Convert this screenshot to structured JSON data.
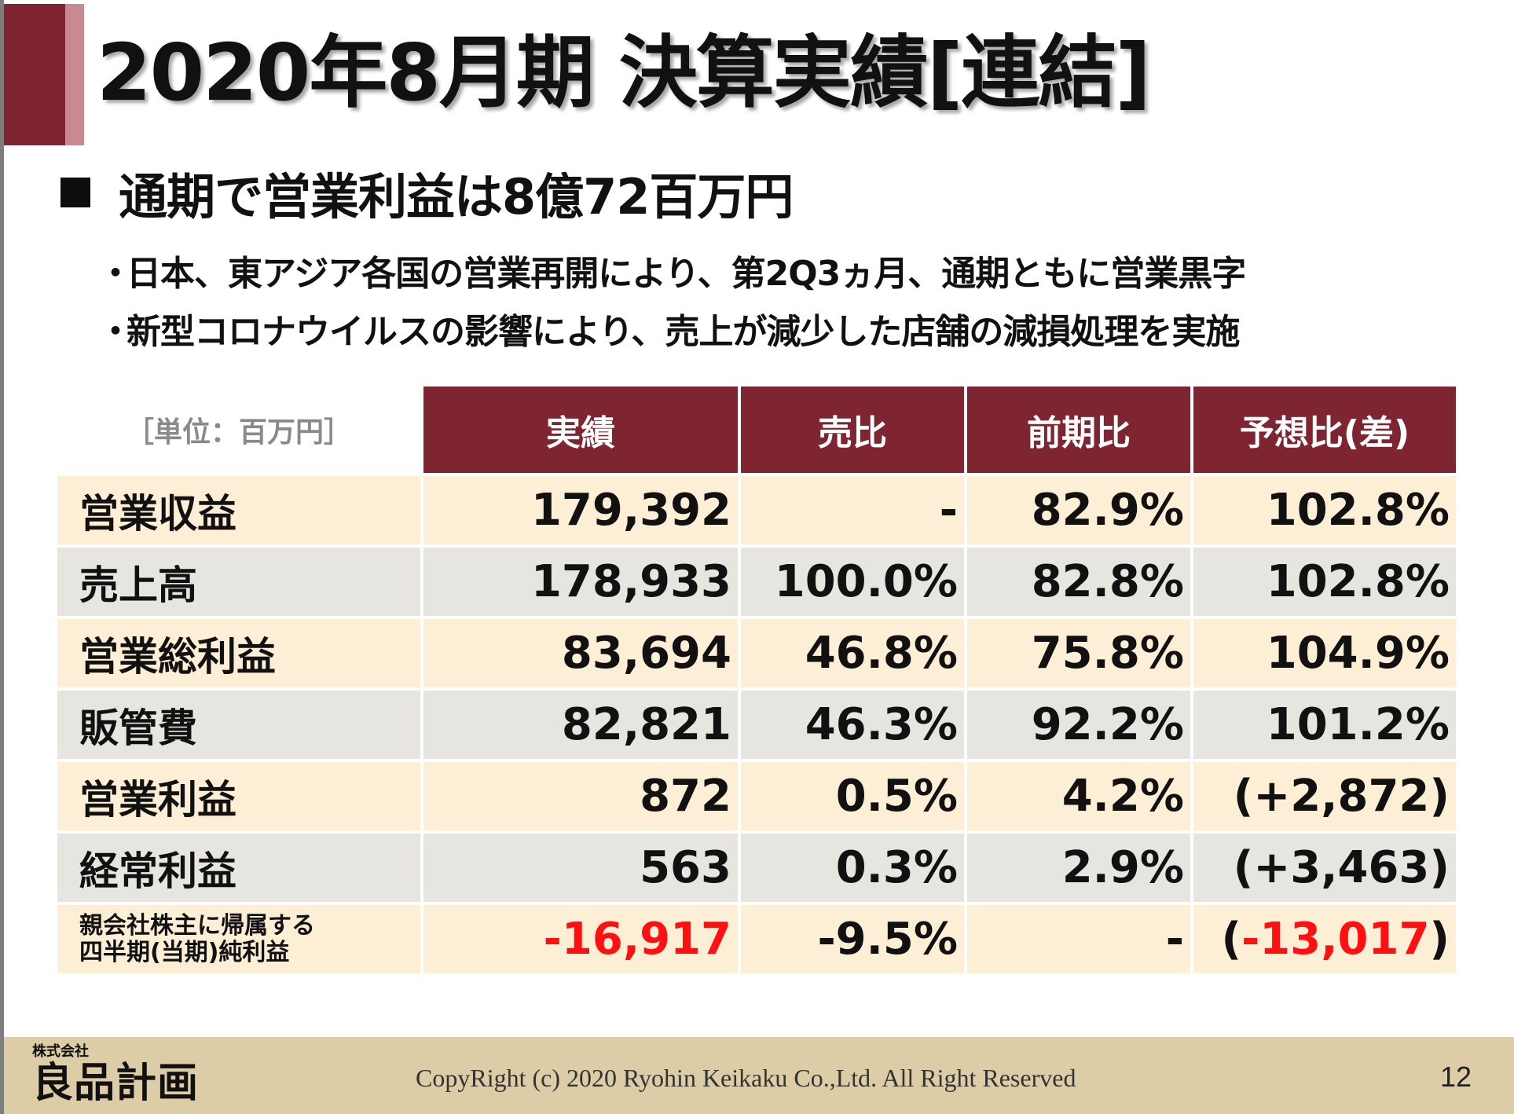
{
  "slide": {
    "title": "2020年8月期 決算実績[連結]",
    "headline": "通期で営業利益は8億72百万円",
    "bullets": [
      "日本、東アジア各国の営業再開により、第2Q3ヵ月、通期ともに営業黒字",
      "新型コロナウイルスの影響により、売上が減少した店舗の減損処理を実施"
    ],
    "bullet_marker": "・"
  },
  "table": {
    "unit_label": "［単位：百万円］",
    "columns": [
      "実績",
      "売比",
      "前期比",
      "予想比(差)"
    ],
    "rows": [
      {
        "label": "営業収益",
        "actual": "179,392",
        "ratio": "-",
        "prev": "82.9%",
        "forecast": "102.8%"
      },
      {
        "label": "売上高",
        "actual": "178,933",
        "ratio": "100.0%",
        "prev": "82.8%",
        "forecast": "102.8%"
      },
      {
        "label": "営業総利益",
        "actual": "83,694",
        "ratio": "46.8%",
        "prev": "75.8%",
        "forecast": "104.9%"
      },
      {
        "label": "販管費",
        "actual": "82,821",
        "ratio": "46.3%",
        "prev": "92.2%",
        "forecast": "101.2%"
      },
      {
        "label": "営業利益",
        "actual": "872",
        "ratio": "0.5%",
        "prev": "4.2%",
        "forecast": "(+2,872)"
      },
      {
        "label": "経常利益",
        "actual": "563",
        "ratio": "0.3%",
        "prev": "2.9%",
        "forecast": "(+3,463)"
      },
      {
        "label_line1": "親会社株主に帰属する",
        "label_line2": "四半期(当期)純利益",
        "actual": "-16,917",
        "ratio": "-9.5%",
        "prev": "-",
        "forecast_open": "(",
        "forecast_value": "-13,017",
        "forecast_close": ")"
      }
    ]
  },
  "footer": {
    "company_small": "株式会社",
    "company_logo": "良品計画",
    "copyright": "CopyRight (c) 2020 Ryohin Keikaku Co.,Ltd. All Right Reserved",
    "page_number": "12"
  },
  "colors": {
    "header_red": "#7f2531",
    "accent_pink": "#c88990",
    "row_cream": "#fdefd6",
    "row_gray": "#e6e5e0",
    "negative": "#ff1010",
    "footer_tan": "#ddcda7"
  },
  "icons": [
    "black-square-icon"
  ]
}
